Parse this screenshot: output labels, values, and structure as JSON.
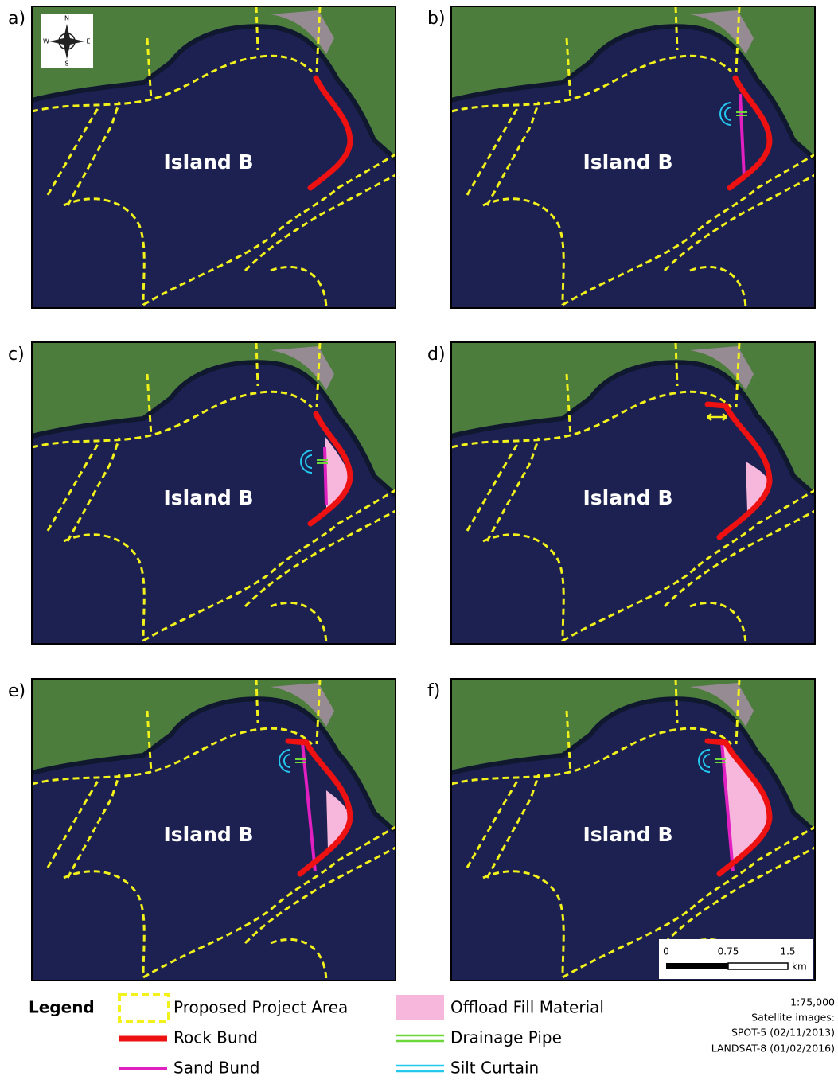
{
  "panels": [
    {
      "label": "a)",
      "island": "Island B"
    },
    {
      "label": "b)",
      "island": "Island B"
    },
    {
      "label": "c)",
      "island": "Island B"
    },
    {
      "label": "d)",
      "island": "Island B"
    },
    {
      "label": "e)",
      "island": "Island B"
    },
    {
      "label": "f)",
      "island": "Island B"
    }
  ],
  "compass": {
    "north": "N",
    "south": "S",
    "east": "E",
    "west": "W"
  },
  "scale_bar": {
    "ticks": [
      "0",
      "0.75",
      "1.5"
    ],
    "unit": "km"
  },
  "legend": {
    "title": "Legend",
    "items": [
      "Proposed Project Area",
      "Rock Bund",
      "Sand Bund",
      "Offload Fill Material",
      "Drainage Pipe",
      "Silt Curtain"
    ]
  },
  "notes": [
    "1:75,000",
    "Satellite images:",
    "SPOT-5 (02/11/2013)",
    "LANDSAT-8 (01/02/2016)"
  ]
}
